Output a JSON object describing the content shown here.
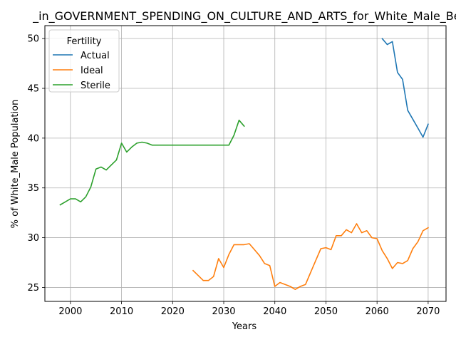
{
  "chart_data": {
    "type": "line",
    "title": "_in_GOVERNMENT_SPENDING_ON_CULTURE_AND_ARTS_for_White_Male_Below",
    "xlabel": "Years",
    "ylabel": "% of White_Male Population",
    "xlim": [
      1995,
      2073.5
    ],
    "ylim": [
      23.6,
      51.3
    ],
    "xticks": [
      2000,
      2010,
      2020,
      2030,
      2040,
      2050,
      2060,
      2070
    ],
    "yticks": [
      25,
      30,
      35,
      40,
      45,
      50
    ],
    "grid": true,
    "legend": {
      "title": "Fertility",
      "placement": "upper-left"
    },
    "series": [
      {
        "name": "Actual",
        "color": "#1f77b4",
        "x": [
          2061,
          2062,
          2063,
          2064,
          2065,
          2066,
          2067,
          2068,
          2069,
          2070
        ],
        "y": [
          50.0,
          49.4,
          49.7,
          46.6,
          45.9,
          42.8,
          41.9,
          41.0,
          40.1,
          41.4
        ]
      },
      {
        "name": "Ideal",
        "color": "#ff7f0e",
        "x": [
          2024,
          2025,
          2026,
          2027,
          2028,
          2029,
          2030,
          2031,
          2032,
          2033,
          2034,
          2035,
          2036,
          2037,
          2038,
          2039,
          2040,
          2041,
          2042,
          2043,
          2044,
          2045,
          2046,
          2047,
          2048,
          2049,
          2050,
          2051,
          2052,
          2053,
          2054,
          2055,
          2056,
          2057,
          2058,
          2059,
          2060,
          2061,
          2062,
          2063,
          2064,
          2065,
          2066,
          2067,
          2068,
          2069,
          2070
        ],
        "y": [
          26.7,
          26.2,
          25.7,
          25.7,
          26.1,
          27.9,
          27.0,
          28.3,
          29.3,
          29.3,
          29.3,
          29.4,
          28.8,
          28.2,
          27.4,
          27.2,
          25.1,
          25.5,
          25.3,
          25.1,
          24.8,
          25.1,
          25.3,
          26.5,
          27.7,
          28.9,
          29.0,
          28.8,
          30.2,
          30.2,
          30.8,
          30.5,
          31.4,
          30.5,
          30.7,
          30.0,
          29.9,
          28.7,
          27.9,
          26.9,
          27.5,
          27.4,
          27.7,
          28.9,
          29.6,
          30.7,
          31.0
        ]
      },
      {
        "name": "Sterile",
        "color": "#2ca02c",
        "x": [
          1998,
          1999,
          2000,
          2001,
          2002,
          2003,
          2004,
          2005,
          2006,
          2007,
          2008,
          2009,
          2010,
          2011,
          2012,
          2013,
          2014,
          2015,
          2016,
          2017,
          2018,
          2019,
          2020,
          2021,
          2022,
          2023,
          2024,
          2025,
          2026,
          2027,
          2028,
          2029,
          2030,
          2031,
          2032,
          2033,
          2034
        ],
        "y": [
          33.3,
          33.6,
          33.9,
          33.9,
          33.6,
          34.1,
          35.1,
          36.9,
          37.1,
          36.8,
          37.3,
          37.8,
          39.5,
          38.6,
          39.1,
          39.5,
          39.6,
          39.5,
          39.3,
          39.3,
          39.3,
          39.3,
          39.3,
          39.3,
          39.3,
          39.3,
          39.3,
          39.3,
          39.3,
          39.3,
          39.3,
          39.3,
          39.3,
          39.3,
          40.3,
          41.8,
          41.2
        ]
      }
    ]
  }
}
